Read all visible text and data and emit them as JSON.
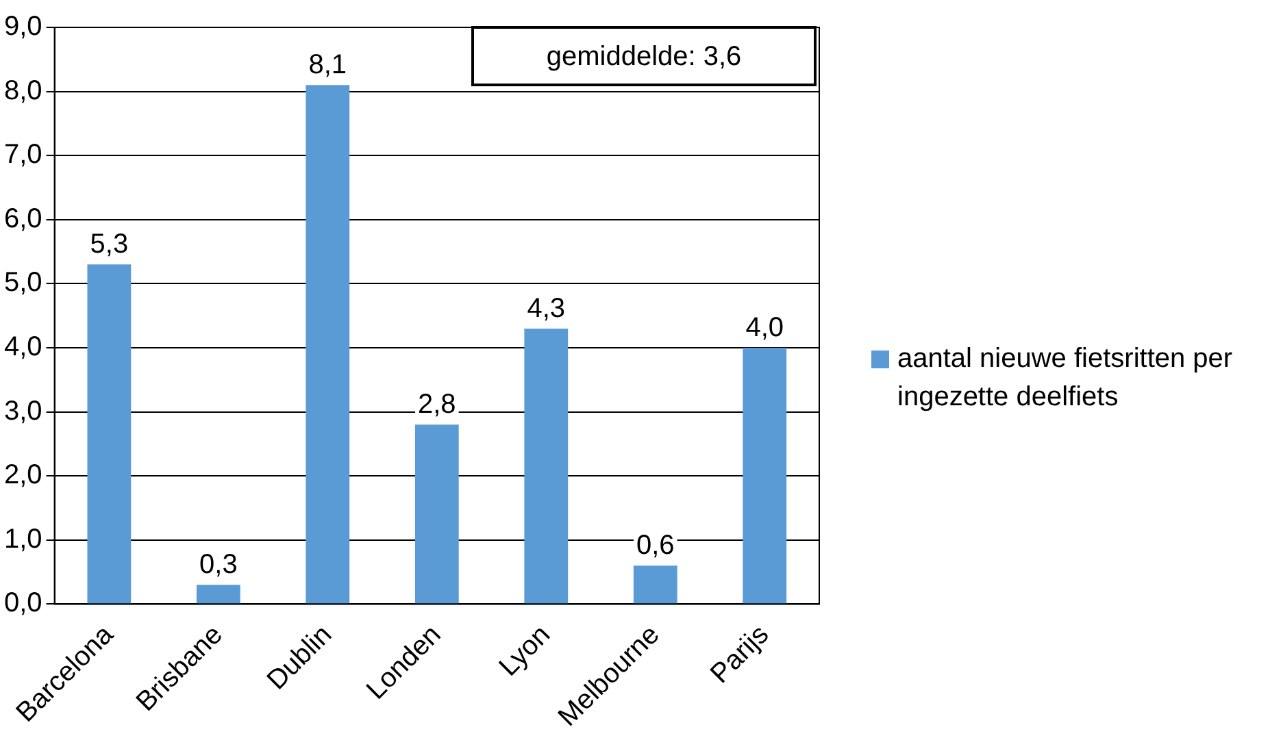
{
  "chart_data": {
    "type": "bar",
    "categories": [
      "Barcelona",
      "Brisbane",
      "Dublin",
      "Londen",
      "Lyon",
      "Melbourne",
      "Parijs"
    ],
    "series": [
      {
        "name": "aantal nieuwe fietsritten per ingezette deelfiets",
        "color": "#5b9bd5",
        "values": [
          5.3,
          0.3,
          8.1,
          2.8,
          4.3,
          0.6,
          4.0
        ],
        "value_labels": [
          "5,3",
          "0,3",
          "8,1",
          "2,8",
          "4,3",
          "0,6",
          "4,0"
        ]
      }
    ],
    "ylim": [
      0,
      9
    ],
    "yticks": [
      {
        "value": 0,
        "label": "0,0"
      },
      {
        "value": 1,
        "label": "1,0"
      },
      {
        "value": 2,
        "label": "2,0"
      },
      {
        "value": 3,
        "label": "3,0"
      },
      {
        "value": 4,
        "label": "4,0"
      },
      {
        "value": 5,
        "label": "5,0"
      },
      {
        "value": 6,
        "label": "6,0"
      },
      {
        "value": 7,
        "label": "7,0"
      },
      {
        "value": 8,
        "label": "8,0"
      },
      {
        "value": 9,
        "label": "9,0"
      }
    ],
    "grid": "y",
    "legend": "right",
    "annotations": [
      "gemiddelde: 3,6"
    ]
  }
}
